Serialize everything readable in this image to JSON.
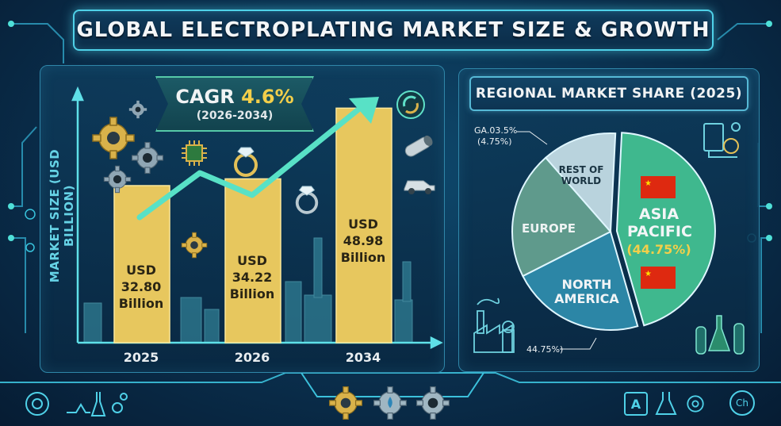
{
  "title": "GLOBAL ELECTROPLATING MARKET SIZE & GROWTH",
  "cagr": {
    "label": "CAGR",
    "value": "4.6%",
    "period": "(2026-2034)"
  },
  "colors": {
    "background": "#0a2f4d",
    "accent": "#4fd1e8",
    "bar_gold": "#e7c75e",
    "asia_pacific": "#3fb88e",
    "north_america": "#2c86a6",
    "europe": "#5f9a8c",
    "rest_of_world": "#b9d3dd",
    "arrow": "#58e1c6"
  },
  "chart_data": [
    {
      "type": "bar",
      "title": "",
      "xlabel": "",
      "ylabel": "MARKET SIZE (USD BILLION)",
      "categories": [
        "2025",
        "2026",
        "2034"
      ],
      "values": [
        32.8,
        34.22,
        48.98
      ],
      "data_labels": [
        [
          "USD",
          "32.80",
          "Billion"
        ],
        [
          "USD",
          "34.22",
          "Billion"
        ],
        [
          "USD",
          "48.98",
          "Billion"
        ]
      ],
      "ylim": [
        0,
        55
      ],
      "grid": false,
      "legend": "none"
    },
    {
      "type": "pie",
      "title": "REGIONAL MARKET SHARE (2025)",
      "slices": [
        {
          "name": "ASIA PACIFIC",
          "value_label": "(44.75%)",
          "value": 44.75
        },
        {
          "name": "NORTH AMERICA",
          "value": 22
        },
        {
          "name": "EUROPE",
          "value": 21
        },
        {
          "name": "REST OF WORLD",
          "value": 12.25
        }
      ],
      "callouts": [
        {
          "line1": "GA.03.5%",
          "line2": "(4.75%)"
        },
        {
          "line1": "44.75%)"
        }
      ],
      "legend": "none"
    }
  ],
  "icons": {
    "top_left": [
      "gear-icon",
      "chip-icon",
      "ring-icon"
    ],
    "top_right": [
      "recycle-icon",
      "pipe-icon",
      "car-icon"
    ],
    "right": [
      "lab-equipment-icon",
      "flask-icon",
      "factory-icon"
    ],
    "bottom": [
      "gear-icon",
      "water-drop-gear-icon",
      "settings-gear-icon",
      "letter-a-icon",
      "flask-icon",
      "chemistry-icon"
    ],
    "bottom_labels": {
      "letter": "A",
      "chem": "Ch"
    }
  }
}
